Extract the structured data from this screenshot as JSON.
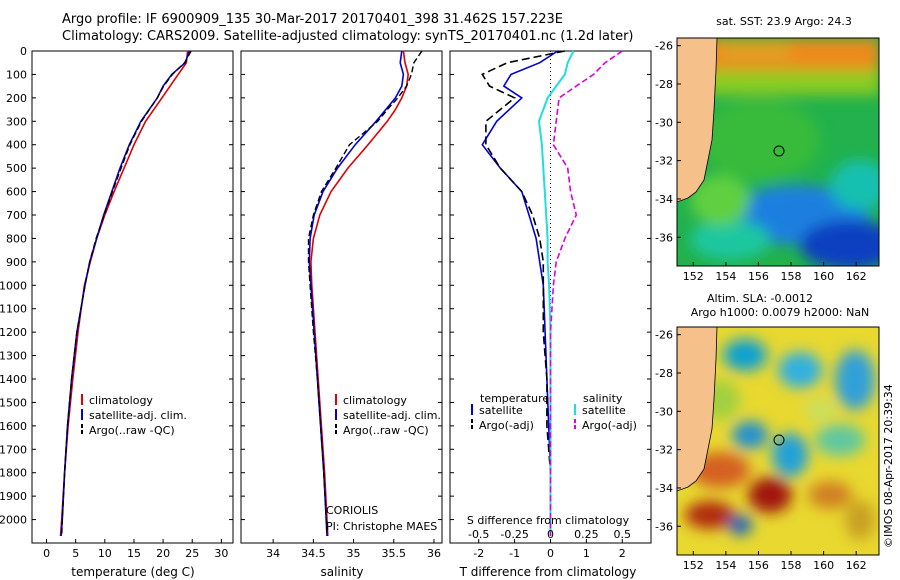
{
  "title_line1": "Argo profile: IF 6900909_135 30-Mar-2017 20170401_398 31.462S 157.223E",
  "title_line2": "Climatology: CARS2009. Satellite-adjusted climatology: synTS_20170401.nc (1.2d later)",
  "colors": {
    "clim": "#e00000",
    "sat": "#0000dd",
    "argo": "#000000",
    "sal_sat": "#22dddd",
    "sal_argo": "#dd00dd",
    "land": "#f5c08a"
  },
  "credit": "©IMOS 08-Apr-2017 20:39:34",
  "chart_data": [
    {
      "type": "line",
      "name": "temperature",
      "xlabel": "temperature (deg C)",
      "xlim": [
        -2.5,
        32
      ],
      "ylim": [
        2100,
        0
      ],
      "xticks": [
        "0",
        "5",
        "10",
        "15",
        "20",
        "25",
        "30"
      ],
      "yticks": [
        "0",
        "100",
        "200",
        "300",
        "400",
        "500",
        "600",
        "700",
        "800",
        "900",
        "1000",
        "1100",
        "1200",
        "1300",
        "1400",
        "1500",
        "1600",
        "1700",
        "1800",
        "1900",
        "2000"
      ],
      "depth": [
        0,
        50,
        100,
        150,
        200,
        300,
        400,
        500,
        600,
        700,
        800,
        900,
        1000,
        1200,
        1400,
        1600,
        1800,
        2000,
        2070
      ],
      "series": [
        {
          "name": "climatology",
          "values": [
            24.2,
            24,
            22.6,
            21.2,
            19.8,
            17,
            15,
            13.3,
            11.6,
            10,
            8.6,
            7.5,
            6.5,
            5.4,
            4.5,
            3.7,
            3.1,
            2.6,
            2.4
          ]
        },
        {
          "name": "satellite-adj. clim.",
          "values": [
            24.5,
            23.8,
            21.5,
            20,
            19,
            16.2,
            14.2,
            12.6,
            11.2,
            9.8,
            8.6,
            7.4,
            6.6,
            5.2,
            4.3,
            3.6,
            3.1,
            2.7,
            2.5
          ]
        },
        {
          "name": "Argo(..raw -QC)",
          "values": [
            24.8,
            23.7,
            21.6,
            20.1,
            19,
            16.3,
            14.3,
            12.8,
            11.3,
            9.9,
            8.5,
            7.4,
            6.6,
            5.2,
            4.3,
            3.6,
            3.1,
            2.7,
            2.6
          ]
        }
      ],
      "legend": [
        "climatology",
        "satellite-adj. clim.",
        "Argo(..raw -QC)"
      ]
    },
    {
      "type": "line",
      "name": "salinity",
      "xlabel": "salinity",
      "xlim": [
        33.6,
        36.1
      ],
      "xticks": [
        "34",
        "34.5",
        "35",
        "35.5",
        "36"
      ],
      "depth": [
        0,
        50,
        100,
        150,
        200,
        250,
        300,
        400,
        500,
        600,
        700,
        800,
        900,
        1000,
        1200,
        1400,
        1600,
        1800,
        2000,
        2070
      ],
      "series": [
        {
          "name": "climatology",
          "values": [
            35.62,
            35.64,
            35.68,
            35.66,
            35.6,
            35.52,
            35.42,
            35.18,
            34.93,
            34.72,
            34.58,
            34.5,
            34.47,
            34.48,
            34.52,
            34.56,
            34.6,
            34.64,
            34.67,
            34.68
          ]
        },
        {
          "name": "satellite-adj. clim.",
          "values": [
            35.6,
            35.58,
            35.62,
            35.6,
            35.52,
            35.4,
            35.28,
            35.02,
            34.8,
            34.62,
            34.51,
            34.46,
            34.45,
            34.47,
            34.51,
            34.55,
            34.59,
            34.63,
            34.66,
            34.67
          ]
        },
        {
          "name": "Argo(..raw -QC)",
          "values": [
            35.85,
            35.75,
            35.72,
            35.66,
            35.55,
            35.42,
            35.3,
            34.95,
            34.78,
            34.6,
            34.5,
            34.44,
            34.44,
            34.46,
            34.5,
            34.55,
            34.59,
            34.63,
            34.66,
            34.67
          ]
        }
      ],
      "legend": [
        "climatology",
        "satellite-adj. clim.",
        "Argo(..raw -QC)"
      ],
      "annotation": [
        "CORIOLIS",
        "PI: Christophe MAES"
      ]
    },
    {
      "type": "line",
      "name": "differences",
      "xlabel": "T difference from climatology",
      "xlabel_top": "S difference from climatology",
      "xlim": [
        -2.8,
        2.8
      ],
      "xticks": [
        "-2",
        "-1",
        "0",
        "1",
        "2"
      ],
      "sticks": [
        "-0.5",
        "-0.25",
        "0",
        "0.25",
        "0.5"
      ],
      "depth": [
        0,
        50,
        100,
        150,
        200,
        300,
        400,
        500,
        600,
        700,
        800,
        900,
        1000,
        1200,
        1400,
        1600,
        1800,
        2000,
        2070
      ],
      "series": [
        {
          "name": "temperature satellite",
          "values": [
            0.2,
            -0.3,
            -1.1,
            -1.3,
            -0.8,
            -1.5,
            -1.9,
            -1.4,
            -0.8,
            -0.6,
            -0.4,
            -0.3,
            -0.2,
            -0.15,
            -0.1,
            -0.05,
            0,
            0,
            0
          ]
        },
        {
          "name": "temperature Argo(-adj)",
          "values": [
            0.4,
            -1.2,
            -1.9,
            -1.7,
            -1.0,
            -1.8,
            -1.8,
            -1.4,
            -0.8,
            -0.5,
            -0.3,
            -0.2,
            -0.2,
            -0.2,
            -0.1,
            -0.1,
            0,
            0,
            0
          ]
        },
        {
          "name": "salinity satellite",
          "values": [
            0.16,
            0.12,
            0.1,
            0.04,
            -0.02,
            -0.08,
            -0.06,
            -0.05,
            -0.04,
            -0.03,
            -0.02,
            -0.02,
            -0.01,
            0,
            0,
            0,
            0,
            0,
            0
          ]
        },
        {
          "name": "salinity Argo(-adj)",
          "values": [
            0.5,
            0.38,
            0.3,
            0.18,
            0.06,
            0.04,
            0.02,
            0.12,
            0.14,
            0.18,
            0.1,
            0.04,
            0.02,
            0,
            0,
            0,
            0,
            0,
            0
          ]
        }
      ],
      "legend_left_title": "temperature",
      "legend_right_title": "salinity",
      "legend_left": [
        "satellite",
        "Argo(-adj)"
      ],
      "legend_right": [
        "satellite",
        "Argo(-adj)"
      ]
    },
    {
      "type": "heatmap",
      "name": "sst map",
      "title": "sat. SST: 23.9 Argo: 24.3",
      "xticks": [
        "152",
        "154",
        "156",
        "158",
        "160",
        "162"
      ],
      "yticks": [
        "-26",
        "-28",
        "-30",
        "-32",
        "-34",
        "-36"
      ],
      "float_lon": 157.223,
      "float_lat": -31.462
    },
    {
      "type": "heatmap",
      "name": "sla map",
      "title_line1": "Altim. SLA: -0.0012",
      "title_line2": "Argo h1000: 0.0079 h2000: NaN",
      "xticks": [
        "152",
        "154",
        "156",
        "158",
        "160",
        "162"
      ],
      "yticks": [
        "-26",
        "-28",
        "-30",
        "-32",
        "-34",
        "-36"
      ],
      "float_lon": 157.223,
      "float_lat": -31.462
    }
  ]
}
